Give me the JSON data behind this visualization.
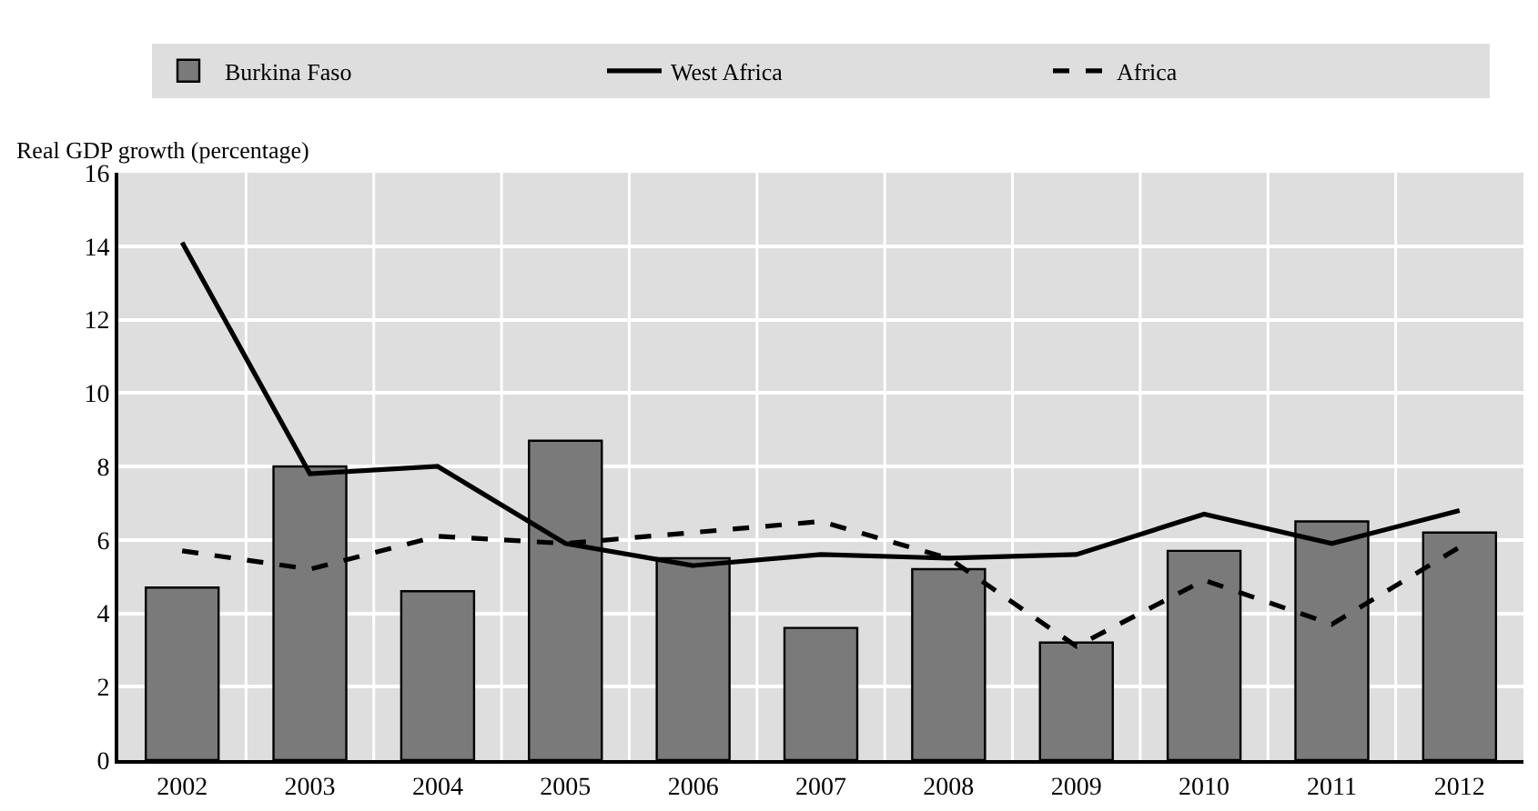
{
  "chart_data": {
    "type": "bar",
    "ylabel": "Real GDP growth (percentage)",
    "categories": [
      "2002",
      "2003",
      "2004",
      "2005",
      "2006",
      "2007",
      "2008",
      "2009",
      "2010",
      "2011",
      "2012"
    ],
    "series": [
      {
        "name": "Burkina Faso",
        "color": "#7a7a7a",
        "values": [
          4.7,
          8.0,
          4.6,
          8.7,
          5.5,
          3.6,
          5.2,
          3.2,
          5.7,
          6.5,
          6.2
        ]
      },
      {
        "name": "West Africa",
        "type": "line",
        "line_style": "solid",
        "color": "#000000",
        "values": [
          14.1,
          7.8,
          8.0,
          5.9,
          5.3,
          5.6,
          5.5,
          5.6,
          6.7,
          5.9,
          6.8
        ]
      },
      {
        "name": "Africa",
        "type": "line",
        "line_style": "dashed",
        "color": "#000000",
        "values": [
          5.7,
          5.2,
          6.1,
          5.9,
          6.2,
          6.5,
          5.5,
          3.1,
          4.9,
          3.7,
          5.8
        ]
      }
    ],
    "ylim": [
      0,
      16
    ],
    "yticks": [
      0,
      2,
      4,
      6,
      8,
      10,
      12,
      14,
      16
    ],
    "grid": true,
    "legend": "top",
    "marker": "none"
  }
}
